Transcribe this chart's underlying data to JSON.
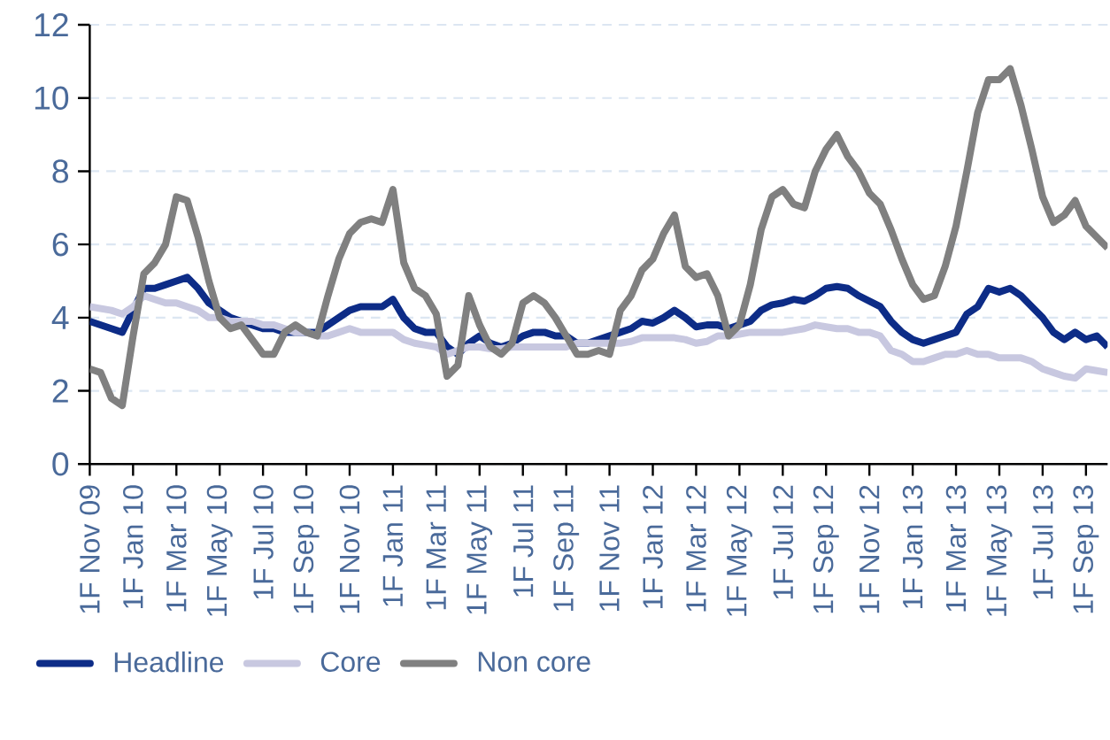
{
  "chart_data": {
    "type": "line",
    "categories": [
      "1F Nov 09",
      null,
      null,
      null,
      "1F Jan 10",
      null,
      null,
      null,
      "1F Mar 10",
      null,
      null,
      null,
      "1F May 10",
      null,
      null,
      null,
      "1F Jul 10",
      null,
      null,
      null,
      "1F Sep 10",
      null,
      null,
      null,
      "1F Nov 10",
      null,
      null,
      null,
      "1F Jan 11",
      null,
      null,
      null,
      "1F Mar 11",
      null,
      null,
      null,
      "1F May 11",
      null,
      null,
      null,
      "1F Jul 11",
      null,
      null,
      null,
      "1F Sep 11",
      null,
      null,
      null,
      "1F Nov 11",
      null,
      null,
      null,
      "1F Jan 12",
      null,
      null,
      null,
      "1F Mar 12",
      null,
      null,
      null,
      "1F May 12",
      null,
      null,
      null,
      "1F Jul 12",
      null,
      null,
      null,
      "1F Sep 12",
      null,
      null,
      null,
      "1F Nov 12",
      null,
      null,
      null,
      "1F Jan 13",
      null,
      null,
      null,
      "1F Mar 13",
      null,
      null,
      null,
      "1F May 13",
      null,
      null,
      null,
      "1F Jul 13",
      null,
      null,
      null,
      "1F Sep 13",
      null,
      null
    ],
    "series": [
      {
        "name": "Headline",
        "color": "#0d2c87",
        "values": [
          3.9,
          3.8,
          3.7,
          3.6,
          4.2,
          4.8,
          4.8,
          4.9,
          5.0,
          5.1,
          4.8,
          4.4,
          4.2,
          4.0,
          3.9,
          3.8,
          3.7,
          3.7,
          3.6,
          3.6,
          3.6,
          3.6,
          3.8,
          4.0,
          4.2,
          4.3,
          4.3,
          4.3,
          4.5,
          4.0,
          3.7,
          3.6,
          3.6,
          3.2,
          3.0,
          3.3,
          3.5,
          3.3,
          3.2,
          3.3,
          3.5,
          3.6,
          3.6,
          3.5,
          3.5,
          3.3,
          3.3,
          3.4,
          3.5,
          3.6,
          3.7,
          3.9,
          3.85,
          4.0,
          4.2,
          4.0,
          3.75,
          3.8,
          3.8,
          3.7,
          3.8,
          3.9,
          4.2,
          4.35,
          4.4,
          4.5,
          4.45,
          4.6,
          4.8,
          4.85,
          4.8,
          4.6,
          4.45,
          4.3,
          3.9,
          3.6,
          3.4,
          3.3,
          3.4,
          3.5,
          3.6,
          4.1,
          4.3,
          4.8,
          4.7,
          4.8,
          4.6,
          4.3,
          4.0,
          3.6,
          3.4,
          3.6,
          3.4,
          3.5,
          3.2
        ]
      },
      {
        "name": "Core",
        "color": "#c8c8e0",
        "values": [
          4.3,
          4.25,
          4.2,
          4.1,
          4.3,
          4.6,
          4.5,
          4.4,
          4.4,
          4.3,
          4.2,
          4.0,
          4.0,
          3.9,
          3.9,
          3.9,
          3.8,
          3.8,
          3.7,
          3.6,
          3.6,
          3.5,
          3.5,
          3.6,
          3.7,
          3.6,
          3.6,
          3.6,
          3.6,
          3.4,
          3.3,
          3.25,
          3.2,
          3.0,
          3.1,
          3.2,
          3.2,
          3.15,
          3.15,
          3.2,
          3.2,
          3.2,
          3.2,
          3.2,
          3.2,
          3.3,
          3.3,
          3.3,
          3.3,
          3.3,
          3.35,
          3.45,
          3.45,
          3.45,
          3.45,
          3.4,
          3.3,
          3.35,
          3.5,
          3.5,
          3.55,
          3.6,
          3.6,
          3.6,
          3.6,
          3.65,
          3.7,
          3.8,
          3.75,
          3.7,
          3.7,
          3.6,
          3.6,
          3.5,
          3.1,
          3.0,
          2.8,
          2.8,
          2.9,
          3.0,
          3.0,
          3.1,
          3.0,
          3.0,
          2.9,
          2.9,
          2.9,
          2.8,
          2.6,
          2.5,
          2.4,
          2.35,
          2.6,
          2.55,
          2.5
        ]
      },
      {
        "name": "Non core",
        "color": "#808080",
        "values": [
          2.6,
          2.5,
          1.8,
          1.6,
          3.5,
          5.2,
          5.5,
          6.0,
          7.3,
          7.2,
          6.2,
          5.0,
          4.0,
          3.7,
          3.8,
          3.4,
          3.0,
          3.0,
          3.6,
          3.8,
          3.6,
          3.5,
          4.6,
          5.6,
          6.3,
          6.6,
          6.7,
          6.6,
          7.5,
          5.5,
          4.8,
          4.6,
          4.1,
          2.4,
          2.7,
          4.6,
          3.8,
          3.2,
          3.0,
          3.3,
          4.4,
          4.6,
          4.4,
          4.0,
          3.5,
          3.0,
          3.0,
          3.1,
          3.0,
          4.2,
          4.6,
          5.3,
          5.6,
          6.3,
          6.8,
          5.4,
          5.1,
          5.2,
          4.6,
          3.5,
          3.8,
          4.9,
          6.4,
          7.3,
          7.5,
          7.1,
          7.0,
          8.0,
          8.6,
          9.0,
          8.4,
          8.0,
          7.4,
          7.1,
          6.4,
          5.6,
          4.9,
          4.5,
          4.6,
          5.4,
          6.5,
          8.0,
          9.6,
          10.5,
          10.5,
          10.8,
          9.8,
          8.6,
          7.3,
          6.6,
          6.8,
          7.2,
          6.5,
          6.2,
          5.9
        ]
      }
    ],
    "ylim": [
      0,
      12
    ],
    "yticks": [
      0,
      2,
      4,
      6,
      8,
      10,
      12
    ],
    "grid": "y",
    "legend": "bottom left",
    "line_style": "solid",
    "marker": "none"
  }
}
